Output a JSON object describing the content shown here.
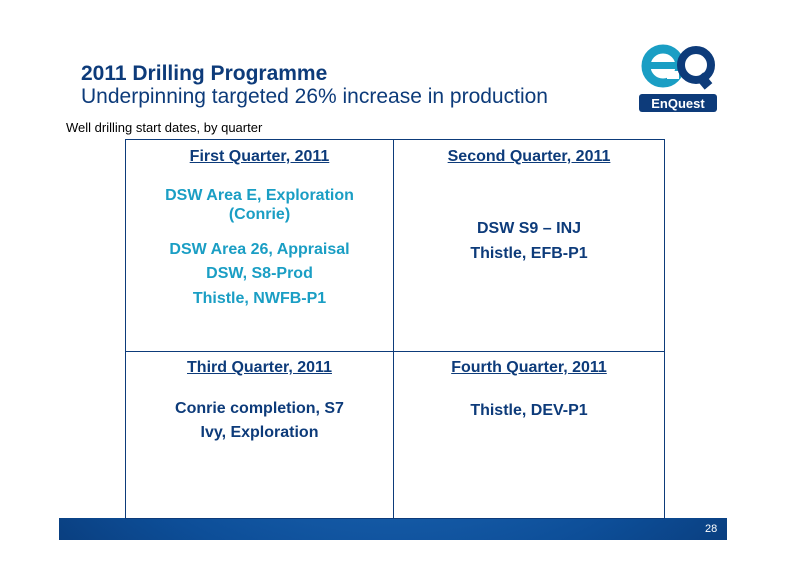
{
  "title": "2011 Drilling Programme",
  "subtitle": "Underpinning targeted 26% increase in production",
  "logo": {
    "text": "EnQuest",
    "mark": "eQ"
  },
  "caption": "Well drilling start dates, by quarter",
  "quarters": [
    {
      "heading": "First Quarter, 2011",
      "items": [
        "DSW Area E, Exploration",
        "(Conrie)",
        "DSW Area 26, Appraisal",
        "DSW, S8-Prod",
        "Thistle, NWFB-P1"
      ]
    },
    {
      "heading": "Second Quarter, 2011",
      "items": [
        "DSW S9 – INJ",
        "Thistle, EFB-P1"
      ]
    },
    {
      "heading": "Third Quarter, 2011",
      "items": [
        "Conrie completion, S7",
        "Ivy, Exploration"
      ]
    },
    {
      "heading": "Fourth Quarter, 2011",
      "items": [
        "Thistle, DEV-P1"
      ]
    }
  ],
  "page_number": "28",
  "colors": {
    "navy": "#0d3b7a",
    "teal": "#1a9ec4",
    "blue": "#1c66b4"
  }
}
